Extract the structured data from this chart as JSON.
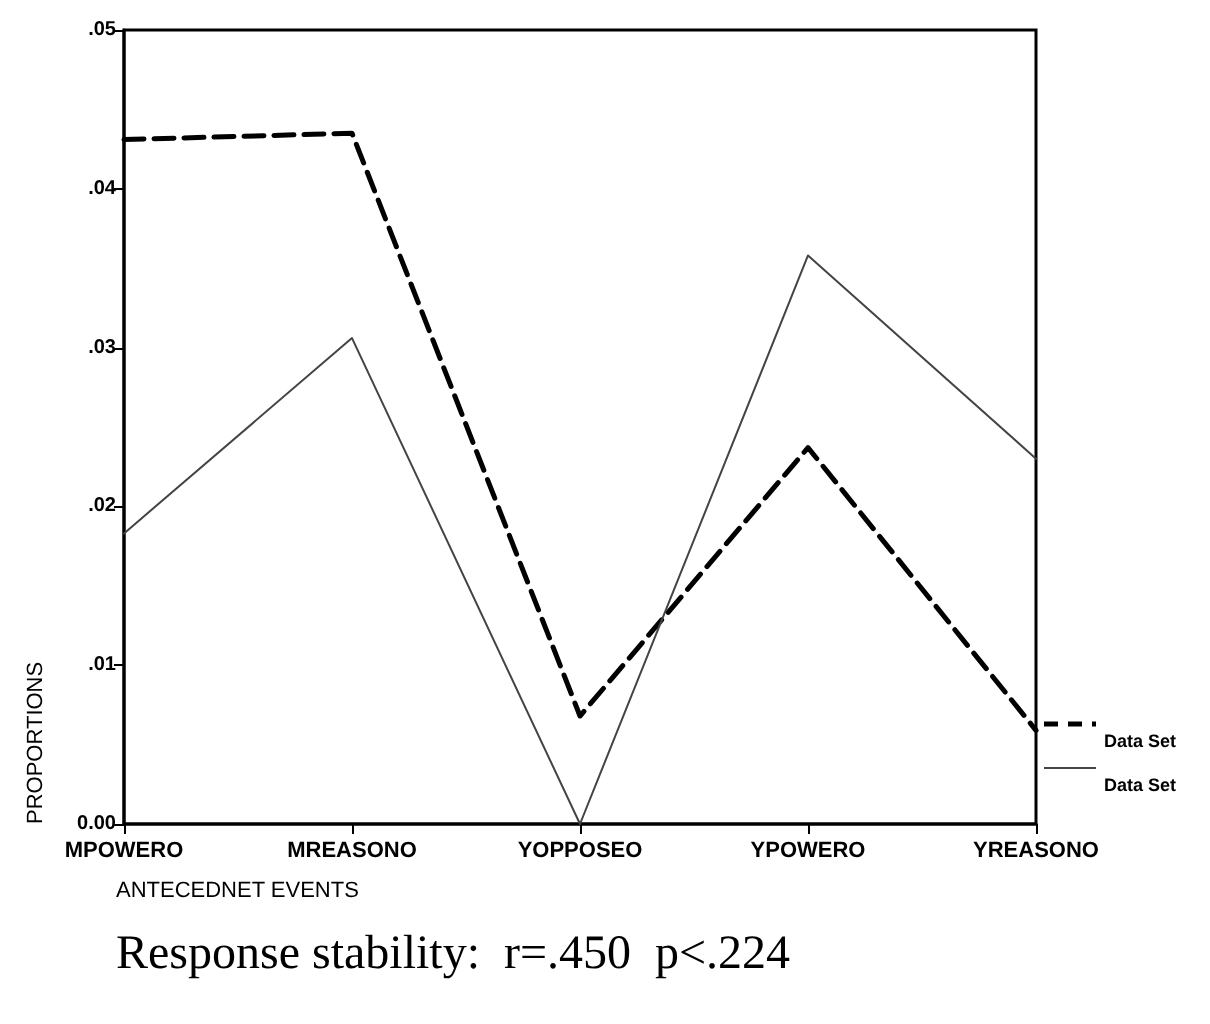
{
  "chart_data": {
    "type": "line",
    "xlabel": "ANTECEDNET EVENTS",
    "ylabel": "PROPORTIONS",
    "annotations": [
      "Response stability:  r=.450  p<.224"
    ],
    "categories": [
      "MPOWERO",
      "MREASONO",
      "YOPPOSEO",
      "YPOWERO",
      "YREASONO"
    ],
    "series": [
      {
        "name": "Data Set",
        "color": "#000000",
        "line_style": "dashed",
        "values": [
          0.0431,
          0.0435,
          0.0068,
          0.0237,
          0.0059
        ]
      },
      {
        "name": "Data Set",
        "color": "#444444",
        "line_style": "solid",
        "values": [
          0.0183,
          0.0306,
          0.0,
          0.0358,
          0.023
        ]
      }
    ],
    "ylim": [
      0,
      0.05
    ],
    "yticks": [
      {
        "value": 0,
        "label": "0.00"
      },
      {
        "value": 0.01,
        "label": ".01"
      },
      {
        "value": 0.02,
        "label": ".02"
      },
      {
        "value": 0.03,
        "label": ".03"
      },
      {
        "value": 0.04,
        "label": ".04"
      },
      {
        "value": 0.05,
        "label": ".05"
      }
    ],
    "grid": false,
    "legend": "right",
    "marker": "none"
  }
}
